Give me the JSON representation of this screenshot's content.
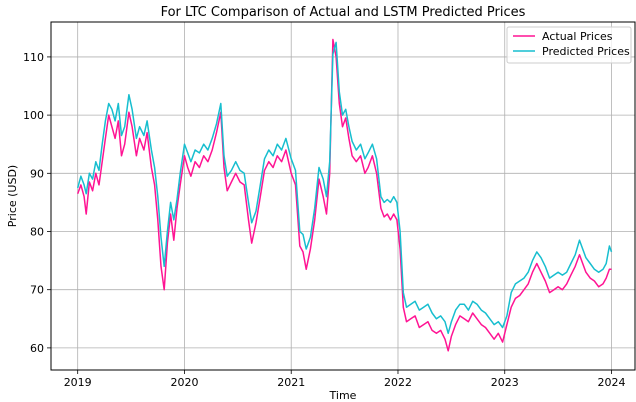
{
  "chart_data": {
    "type": "line",
    "title": "For LTC Comparison of Actual and LSTM Predicted Prices",
    "xlabel": "Time",
    "ylabel": "Price (USD)",
    "xlim": [
      2018.75,
      2024.22
    ],
    "ylim": [
      56.2,
      116.0
    ],
    "grid": true,
    "legend_position": "top-right",
    "x_ticks": [
      2019,
      2020,
      2021,
      2022,
      2023,
      2024
    ],
    "x_tick_labels": [
      "2019",
      "2020",
      "2021",
      "2022",
      "2023",
      "2024"
    ],
    "y_ticks": [
      60,
      70,
      80,
      90,
      100,
      110
    ],
    "y_tick_labels": [
      "60",
      "70",
      "80",
      "90",
      "100",
      "110"
    ],
    "series": [
      {
        "name": "Actual Prices",
        "color": "#ff1493",
        "points": [
          [
            2019.0,
            86.5
          ],
          [
            2019.03,
            88.0
          ],
          [
            2019.06,
            86.0
          ],
          [
            2019.08,
            83.0
          ],
          [
            2019.11,
            88.5
          ],
          [
            2019.14,
            87.0
          ],
          [
            2019.17,
            90.0
          ],
          [
            2019.2,
            88.0
          ],
          [
            2019.23,
            92.0
          ],
          [
            2019.26,
            96.0
          ],
          [
            2019.29,
            100.0
          ],
          [
            2019.32,
            98.0
          ],
          [
            2019.35,
            96.0
          ],
          [
            2019.38,
            99.0
          ],
          [
            2019.41,
            93.0
          ],
          [
            2019.44,
            95.0
          ],
          [
            2019.48,
            100.5
          ],
          [
            2019.51,
            98.0
          ],
          [
            2019.55,
            93.0
          ],
          [
            2019.58,
            96.0
          ],
          [
            2019.62,
            94.0
          ],
          [
            2019.65,
            97.0
          ],
          [
            2019.69,
            91.0
          ],
          [
            2019.72,
            88.0
          ],
          [
            2019.75,
            82.0
          ],
          [
            2019.78,
            74.0
          ],
          [
            2019.81,
            70.0
          ],
          [
            2019.84,
            78.0
          ],
          [
            2019.87,
            83.0
          ],
          [
            2019.9,
            78.5
          ],
          [
            2019.93,
            84.0
          ],
          [
            2019.96,
            88.0
          ],
          [
            2020.0,
            93.0
          ],
          [
            2020.03,
            91.0
          ],
          [
            2020.06,
            89.5
          ],
          [
            2020.1,
            92.0
          ],
          [
            2020.14,
            91.0
          ],
          [
            2020.18,
            93.0
          ],
          [
            2020.22,
            92.0
          ],
          [
            2020.26,
            94.0
          ],
          [
            2020.3,
            97.0
          ],
          [
            2020.34,
            100.5
          ],
          [
            2020.37,
            91.0
          ],
          [
            2020.4,
            87.0
          ],
          [
            2020.44,
            88.5
          ],
          [
            2020.48,
            90.0
          ],
          [
            2020.52,
            88.5
          ],
          [
            2020.56,
            88.0
          ],
          [
            2020.6,
            82.0
          ],
          [
            2020.63,
            78.0
          ],
          [
            2020.67,
            81.5
          ],
          [
            2020.71,
            86.0
          ],
          [
            2020.75,
            90.5
          ],
          [
            2020.79,
            92.0
          ],
          [
            2020.83,
            91.0
          ],
          [
            2020.87,
            93.0
          ],
          [
            2020.91,
            92.0
          ],
          [
            2020.95,
            94.0
          ],
          [
            2021.0,
            90.0
          ],
          [
            2021.04,
            88.0
          ],
          [
            2021.08,
            77.5
          ],
          [
            2021.11,
            76.5
          ],
          [
            2021.14,
            73.5
          ],
          [
            2021.18,
            77.0
          ],
          [
            2021.22,
            82.0
          ],
          [
            2021.26,
            89.0
          ],
          [
            2021.3,
            86.0
          ],
          [
            2021.33,
            83.0
          ],
          [
            2021.36,
            90.0
          ],
          [
            2021.39,
            113.0
          ],
          [
            2021.42,
            110.0
          ],
          [
            2021.45,
            102.0
          ],
          [
            2021.48,
            98.0
          ],
          [
            2021.51,
            99.5
          ],
          [
            2021.54,
            96.0
          ],
          [
            2021.57,
            93.0
          ],
          [
            2021.61,
            92.0
          ],
          [
            2021.65,
            93.0
          ],
          [
            2021.69,
            90.0
          ],
          [
            2021.72,
            91.0
          ],
          [
            2021.76,
            93.0
          ],
          [
            2021.8,
            90.0
          ],
          [
            2021.84,
            84.0
          ],
          [
            2021.87,
            82.5
          ],
          [
            2021.9,
            83.0
          ],
          [
            2021.93,
            82.0
          ],
          [
            2021.96,
            83.0
          ],
          [
            2021.99,
            82.0
          ],
          [
            2022.02,
            77.0
          ],
          [
            2022.05,
            67.0
          ],
          [
            2022.08,
            64.5
          ],
          [
            2022.12,
            65.0
          ],
          [
            2022.16,
            65.5
          ],
          [
            2022.2,
            63.5
          ],
          [
            2022.24,
            64.0
          ],
          [
            2022.28,
            64.5
          ],
          [
            2022.32,
            63.0
          ],
          [
            2022.36,
            62.5
          ],
          [
            2022.4,
            63.0
          ],
          [
            2022.44,
            61.5
          ],
          [
            2022.47,
            59.5
          ],
          [
            2022.5,
            62.0
          ],
          [
            2022.54,
            64.0
          ],
          [
            2022.58,
            65.5
          ],
          [
            2022.62,
            65.0
          ],
          [
            2022.66,
            64.5
          ],
          [
            2022.7,
            66.0
          ],
          [
            2022.74,
            65.0
          ],
          [
            2022.78,
            64.0
          ],
          [
            2022.82,
            63.5
          ],
          [
            2022.86,
            62.5
          ],
          [
            2022.9,
            61.5
          ],
          [
            2022.94,
            62.5
          ],
          [
            2022.98,
            61.0
          ],
          [
            2023.02,
            64.0
          ],
          [
            2023.06,
            67.0
          ],
          [
            2023.1,
            68.5
          ],
          [
            2023.14,
            69.0
          ],
          [
            2023.18,
            70.0
          ],
          [
            2023.22,
            71.0
          ],
          [
            2023.26,
            73.0
          ],
          [
            2023.3,
            74.5
          ],
          [
            2023.34,
            73.0
          ],
          [
            2023.38,
            71.5
          ],
          [
            2023.42,
            69.5
          ],
          [
            2023.46,
            70.0
          ],
          [
            2023.5,
            70.5
          ],
          [
            2023.54,
            70.0
          ],
          [
            2023.58,
            71.0
          ],
          [
            2023.62,
            72.5
          ],
          [
            2023.66,
            74.0
          ],
          [
            2023.7,
            76.0
          ],
          [
            2023.73,
            74.5
          ],
          [
            2023.76,
            73.0
          ],
          [
            2023.8,
            72.0
          ],
          [
            2023.84,
            71.5
          ],
          [
            2023.88,
            70.5
          ],
          [
            2023.92,
            71.0
          ],
          [
            2023.95,
            72.0
          ],
          [
            2023.98,
            73.5
          ],
          [
            2024.0,
            73.5
          ]
        ]
      },
      {
        "name": "Predicted Prices",
        "color": "#17becf",
        "points": [
          [
            2019.0,
            87.5
          ],
          [
            2019.03,
            89.5
          ],
          [
            2019.06,
            88.0
          ],
          [
            2019.08,
            86.5
          ],
          [
            2019.11,
            90.0
          ],
          [
            2019.14,
            89.0
          ],
          [
            2019.17,
            92.0
          ],
          [
            2019.2,
            90.5
          ],
          [
            2019.23,
            95.0
          ],
          [
            2019.26,
            99.0
          ],
          [
            2019.29,
            102.0
          ],
          [
            2019.32,
            101.0
          ],
          [
            2019.35,
            99.0
          ],
          [
            2019.38,
            102.0
          ],
          [
            2019.41,
            96.5
          ],
          [
            2019.44,
            98.0
          ],
          [
            2019.48,
            103.5
          ],
          [
            2019.51,
            101.0
          ],
          [
            2019.55,
            96.0
          ],
          [
            2019.58,
            98.0
          ],
          [
            2019.62,
            96.5
          ],
          [
            2019.65,
            99.0
          ],
          [
            2019.69,
            94.0
          ],
          [
            2019.72,
            91.0
          ],
          [
            2019.75,
            86.0
          ],
          [
            2019.78,
            79.0
          ],
          [
            2019.81,
            74.0
          ],
          [
            2019.84,
            80.0
          ],
          [
            2019.87,
            85.0
          ],
          [
            2019.9,
            82.0
          ],
          [
            2019.93,
            85.5
          ],
          [
            2019.96,
            90.0
          ],
          [
            2020.0,
            95.0
          ],
          [
            2020.03,
            93.5
          ],
          [
            2020.06,
            92.0
          ],
          [
            2020.1,
            94.0
          ],
          [
            2020.14,
            93.5
          ],
          [
            2020.18,
            95.0
          ],
          [
            2020.22,
            94.0
          ],
          [
            2020.26,
            96.0
          ],
          [
            2020.3,
            98.5
          ],
          [
            2020.34,
            102.0
          ],
          [
            2020.37,
            93.0
          ],
          [
            2020.4,
            89.5
          ],
          [
            2020.44,
            90.5
          ],
          [
            2020.48,
            92.0
          ],
          [
            2020.52,
            90.5
          ],
          [
            2020.56,
            90.0
          ],
          [
            2020.6,
            85.0
          ],
          [
            2020.63,
            81.5
          ],
          [
            2020.67,
            83.5
          ],
          [
            2020.71,
            88.0
          ],
          [
            2020.75,
            92.5
          ],
          [
            2020.79,
            94.0
          ],
          [
            2020.83,
            93.0
          ],
          [
            2020.87,
            95.0
          ],
          [
            2020.91,
            94.0
          ],
          [
            2020.95,
            96.0
          ],
          [
            2021.0,
            92.5
          ],
          [
            2021.04,
            90.5
          ],
          [
            2021.08,
            80.0
          ],
          [
            2021.11,
            79.5
          ],
          [
            2021.14,
            77.0
          ],
          [
            2021.18,
            79.0
          ],
          [
            2021.22,
            84.0
          ],
          [
            2021.26,
            91.0
          ],
          [
            2021.3,
            89.0
          ],
          [
            2021.33,
            86.0
          ],
          [
            2021.36,
            92.0
          ],
          [
            2021.39,
            110.5
          ],
          [
            2021.42,
            112.5
          ],
          [
            2021.45,
            104.0
          ],
          [
            2021.48,
            100.0
          ],
          [
            2021.51,
            101.0
          ],
          [
            2021.54,
            98.0
          ],
          [
            2021.57,
            95.5
          ],
          [
            2021.61,
            94.0
          ],
          [
            2021.65,
            95.0
          ],
          [
            2021.69,
            92.5
          ],
          [
            2021.72,
            93.5
          ],
          [
            2021.76,
            95.0
          ],
          [
            2021.8,
            92.5
          ],
          [
            2021.84,
            86.0
          ],
          [
            2021.87,
            85.0
          ],
          [
            2021.9,
            85.5
          ],
          [
            2021.93,
            85.0
          ],
          [
            2021.96,
            86.0
          ],
          [
            2021.99,
            85.0
          ],
          [
            2022.02,
            80.0
          ],
          [
            2022.05,
            69.5
          ],
          [
            2022.08,
            67.0
          ],
          [
            2022.12,
            67.5
          ],
          [
            2022.16,
            68.0
          ],
          [
            2022.2,
            66.5
          ],
          [
            2022.24,
            67.0
          ],
          [
            2022.28,
            67.5
          ],
          [
            2022.32,
            66.0
          ],
          [
            2022.36,
            65.0
          ],
          [
            2022.4,
            65.5
          ],
          [
            2022.44,
            64.5
          ],
          [
            2022.47,
            62.5
          ],
          [
            2022.5,
            64.5
          ],
          [
            2022.54,
            66.5
          ],
          [
            2022.58,
            67.5
          ],
          [
            2022.62,
            67.5
          ],
          [
            2022.66,
            66.5
          ],
          [
            2022.7,
            68.0
          ],
          [
            2022.74,
            67.5
          ],
          [
            2022.78,
            66.5
          ],
          [
            2022.82,
            66.0
          ],
          [
            2022.86,
            65.0
          ],
          [
            2022.9,
            64.0
          ],
          [
            2022.94,
            64.5
          ],
          [
            2022.98,
            63.5
          ],
          [
            2023.02,
            65.5
          ],
          [
            2023.06,
            69.5
          ],
          [
            2023.1,
            71.0
          ],
          [
            2023.14,
            71.5
          ],
          [
            2023.18,
            72.0
          ],
          [
            2023.22,
            73.0
          ],
          [
            2023.26,
            75.0
          ],
          [
            2023.3,
            76.5
          ],
          [
            2023.34,
            75.5
          ],
          [
            2023.38,
            74.0
          ],
          [
            2023.42,
            72.0
          ],
          [
            2023.46,
            72.5
          ],
          [
            2023.5,
            73.0
          ],
          [
            2023.54,
            72.5
          ],
          [
            2023.58,
            73.0
          ],
          [
            2023.62,
            74.5
          ],
          [
            2023.66,
            76.0
          ],
          [
            2023.7,
            78.5
          ],
          [
            2023.73,
            77.0
          ],
          [
            2023.76,
            75.5
          ],
          [
            2023.8,
            74.5
          ],
          [
            2023.84,
            73.5
          ],
          [
            2023.88,
            73.0
          ],
          [
            2023.92,
            73.5
          ],
          [
            2023.95,
            74.5
          ],
          [
            2023.98,
            77.5
          ],
          [
            2024.0,
            76.5
          ]
        ]
      }
    ]
  }
}
